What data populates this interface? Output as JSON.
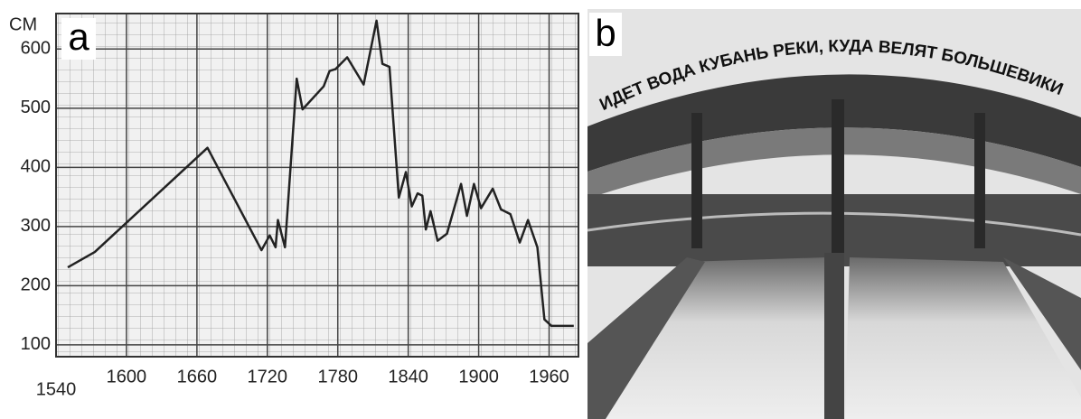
{
  "chart_data": {
    "type": "line",
    "panel_label": "a",
    "y_unit": "CM",
    "x": [
      1550,
      1573,
      1669,
      1715,
      1722,
      1727,
      1729,
      1735,
      1745,
      1750,
      1768,
      1773,
      1778,
      1788,
      1802,
      1813,
      1818,
      1824,
      1832,
      1838,
      1843,
      1848,
      1852,
      1855,
      1859,
      1865,
      1873,
      1885,
      1890,
      1896,
      1902,
      1912,
      1919,
      1927,
      1935,
      1942,
      1950,
      1956,
      1962,
      1981
    ],
    "values": [
      231,
      257,
      433,
      260,
      285,
      265,
      311,
      265,
      550,
      498,
      537,
      563,
      566,
      586,
      540,
      648,
      575,
      570,
      349,
      392,
      334,
      356,
      352,
      295,
      326,
      276,
      288,
      372,
      318,
      372,
      331,
      364,
      329,
      321,
      273,
      311,
      265,
      143,
      132,
      132
    ],
    "color": "#222222",
    "xlim": [
      1540,
      1985
    ],
    "xticks": [
      1540,
      1600,
      1660,
      1720,
      1780,
      1840,
      1900,
      1960
    ],
    "ylim": [
      80,
      660
    ],
    "yticks": [
      100,
      200,
      300,
      400,
      500,
      600
    ],
    "grid": true
  },
  "photo": {
    "panel_label": "b",
    "inscription": "ИДЕТ ВОДА КУБАНЬ РЕКИ, КУДА ВЕЛЯТ БОЛЬШЕВИКИ"
  }
}
